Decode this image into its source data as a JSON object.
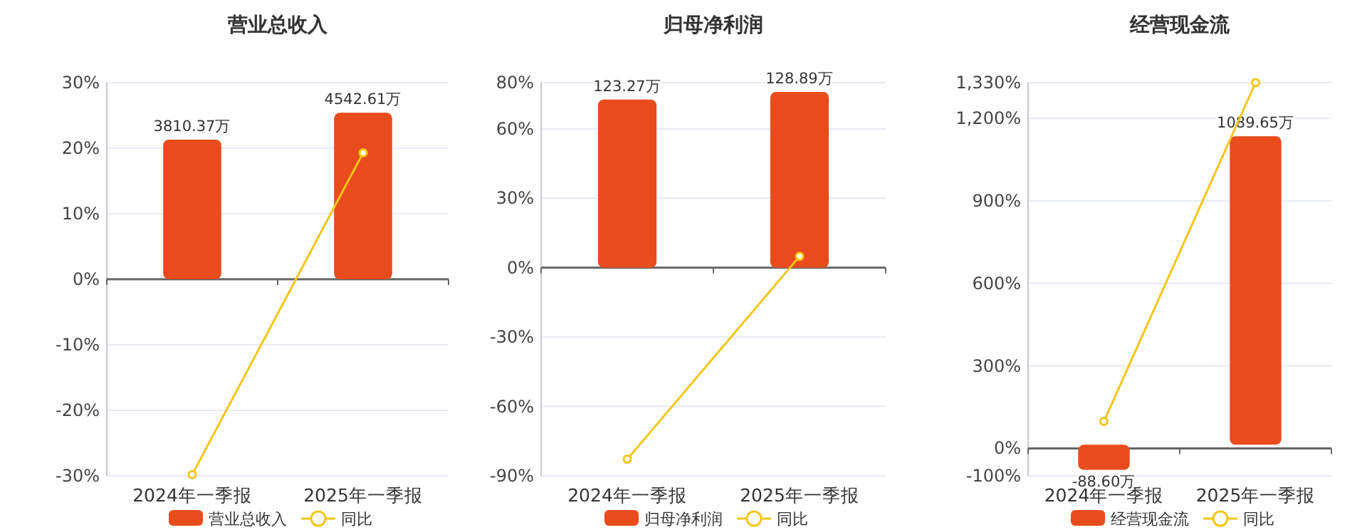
{
  "chart_data": [
    {
      "type": "bar",
      "title": "营业总收入",
      "categories": [
        "2024年一季报",
        "2025年一季报"
      ],
      "series": [
        {
          "name": "营业总收入",
          "axis": "y2",
          "color": "#e84c1c",
          "values": [
            3810.37,
            4542.61
          ],
          "value_labels": [
            "3810.37万",
            "4542.61万"
          ]
        },
        {
          "name": "同比",
          "type": "line",
          "color": "#f5c518",
          "marker": "circle",
          "values": [
            -29.8,
            19.3
          ]
        }
      ],
      "ylim": [
        -30,
        30
      ],
      "yticks": [
        {
          "value": 30,
          "label": "30%"
        },
        {
          "value": 20,
          "label": "20%"
        },
        {
          "value": 10,
          "label": "10%"
        },
        {
          "value": 0,
          "label": "0%"
        },
        {
          "value": -10,
          "label": "-10%"
        },
        {
          "value": -20,
          "label": "-20%"
        },
        {
          "value": -30,
          "label": "-30%"
        }
      ],
      "y2lim": [
        -5365,
        5365
      ],
      "grid": "y",
      "legend": "bottom"
    },
    {
      "type": "bar",
      "title": "归母净利润",
      "categories": [
        "2024年一季报",
        "2025年一季报"
      ],
      "series": [
        {
          "name": "归母净利润",
          "axis": "y2",
          "color": "#e84c1c",
          "values": [
            123.27,
            128.89
          ],
          "value_labels": [
            "123.27万",
            "128.89万"
          ]
        },
        {
          "name": "同比",
          "type": "line",
          "color": "#f5c518",
          "marker": "circle",
          "values": [
            -82.8,
            4.9
          ]
        }
      ],
      "ylim": [
        -90,
        80
      ],
      "yticks": [
        {
          "value": 80,
          "label": "80%"
        },
        {
          "value": 60,
          "label": "60%"
        },
        {
          "value": 30,
          "label": "30%"
        },
        {
          "value": 0,
          "label": "0%"
        },
        {
          "value": -30,
          "label": "-30%"
        },
        {
          "value": -60,
          "label": "-60%"
        },
        {
          "value": -90,
          "label": "-90%"
        }
      ],
      "y2lim": [
        -152.6,
        135.7
      ],
      "grid": "y",
      "legend": "bottom"
    },
    {
      "type": "bar",
      "title": "经营现金流",
      "categories": [
        "2024年一季报",
        "2025年一季报"
      ],
      "series": [
        {
          "name": "经营现金流",
          "axis": "y2",
          "color": "#e84c1c",
          "values": [
            -88.6,
            1089.65
          ],
          "value_labels": [
            "-88.60万",
            "1089.65万"
          ]
        },
        {
          "name": "同比",
          "type": "line",
          "color": "#f5c518",
          "marker": "circle",
          "values": [
            98,
            1330
          ]
        }
      ],
      "ylim": [
        -100,
        1330
      ],
      "yticks": [
        {
          "value": 1330,
          "label": "1,330%"
        },
        {
          "value": 1200,
          "label": "1,200%"
        },
        {
          "value": 900,
          "label": "900%"
        },
        {
          "value": 600,
          "label": "600%"
        },
        {
          "value": 300,
          "label": "300%"
        },
        {
          "value": 0,
          "label": "0%"
        },
        {
          "value": -100,
          "label": "-100%"
        }
      ],
      "y2lim": [
        -110,
        1279
      ],
      "grid": "y",
      "legend": "bottom"
    }
  ]
}
